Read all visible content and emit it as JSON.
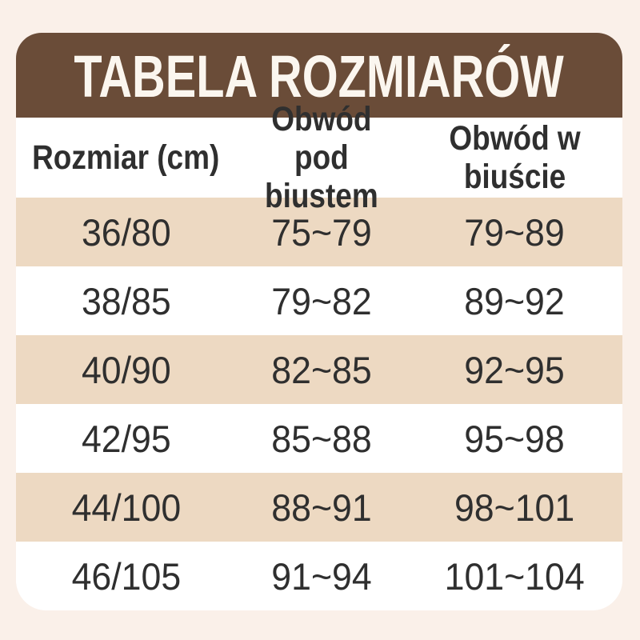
{
  "title": "TABELA ROZMIARÓW",
  "colors": {
    "page_background": "#FAF0E9",
    "title_band_background": "#6A4C38",
    "title_text": "#FBF6EF",
    "alt_row_background": "#EDD9C2",
    "row_background": "#FFFFFF",
    "table_text": "#2F2F2F"
  },
  "chart_data": {
    "type": "table",
    "title": "TABELA ROZMIARÓW",
    "columns": [
      "Rozmiar (cm)",
      "Obwód pod biustem",
      "Obwód w biuście"
    ],
    "rows": [
      [
        "36/80",
        "75~79",
        "79~89"
      ],
      [
        "38/85",
        "79~82",
        "89~92"
      ],
      [
        "40/90",
        "82~85",
        "92~95"
      ],
      [
        "42/95",
        "85~88",
        "95~98"
      ],
      [
        "44/100",
        "88~91",
        "98~101"
      ],
      [
        "46/105",
        "91~94",
        "101~104"
      ]
    ],
    "layout": {
      "row_striping": "tan/white alternating starting with tan",
      "alignment": "all cells centered",
      "header_band": "brown rounded-top banner above table"
    }
  }
}
